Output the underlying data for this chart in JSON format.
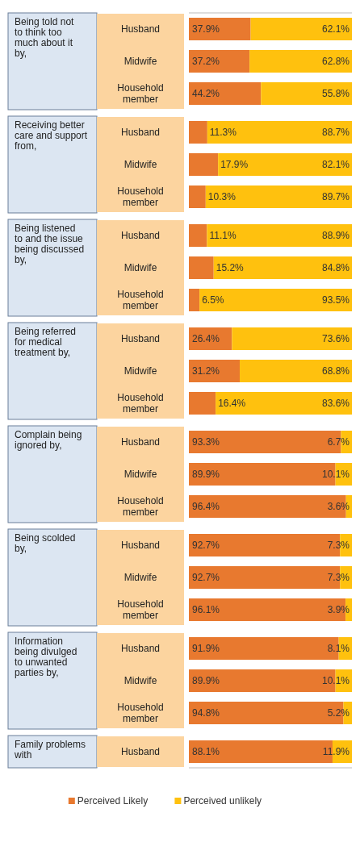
{
  "chart_data": {
    "type": "bar",
    "orientation": "horizontal",
    "stacked": true,
    "categories": [
      "Husband",
      "Midwife",
      "Household member",
      "Husband",
      "Midwife",
      "Household member",
      "Husband",
      "Midwife",
      "Household member",
      "Husband",
      "Midwife",
      "Household member",
      "Husband",
      "Midwife",
      "Household member",
      "Husband",
      "Midwife",
      "Household member",
      "Husband",
      "Midwife",
      "Household member",
      "Husband"
    ],
    "series": [
      {
        "name": "Perceived Likely",
        "color": "#e8792f",
        "values": [
          37.9,
          37.2,
          44.2,
          11.3,
          17.9,
          10.3,
          11.1,
          15.2,
          6.5,
          26.4,
          31.2,
          16.4,
          93.3,
          89.9,
          96.4,
          92.7,
          92.7,
          96.1,
          91.9,
          89.9,
          94.8,
          88.1
        ],
        "value_labels": [
          "37.9%",
          "37.2%",
          "44.2%",
          "11.3%",
          "17.9%",
          "10.3%",
          "11.1%",
          "15.2%",
          "6.5%",
          "26.4%",
          "31.2%",
          "16.4%",
          "93.3%",
          "89.9%",
          "96.4%",
          "92.7%",
          "92.7%",
          "96.1%",
          "91.9%",
          "89.9%",
          "94.8%",
          "88.1%"
        ]
      },
      {
        "name": "Perceived unlikely",
        "color": "#ffc10e",
        "values": [
          62.1,
          62.8,
          55.8,
          88.7,
          82.1,
          89.7,
          88.9,
          84.8,
          93.5,
          73.6,
          68.8,
          83.6,
          6.7,
          10.1,
          3.6,
          7.3,
          7.3,
          3.9,
          8.1,
          10.1,
          5.2,
          11.9
        ],
        "value_labels": [
          "62.1%",
          "62.8%",
          "55.8%",
          "88.7%",
          "82.1%",
          "89.7%",
          "88.9%",
          "84.8%",
          "93.5%",
          "73.6%",
          "68.8%",
          "83.6%",
          "6.7%",
          "10.1%",
          "3.6%",
          "7.3%",
          "7.3%",
          "3.9%",
          "8.1%",
          "10.1%",
          "5.2%",
          "11.9%"
        ]
      }
    ],
    "xlim": [
      0,
      100
    ],
    "legend": "bottom",
    "annotations": [
      "Being told not to think too much about it by,",
      "Receiving better care and support from,",
      "Being listened to and the issue being discussed by,",
      "Being referred for medical treatment by,",
      "Complain being ignored by,",
      "Being scolded by,",
      "Information being divulged to unwanted parties by,",
      "Family problems with"
    ]
  }
}
